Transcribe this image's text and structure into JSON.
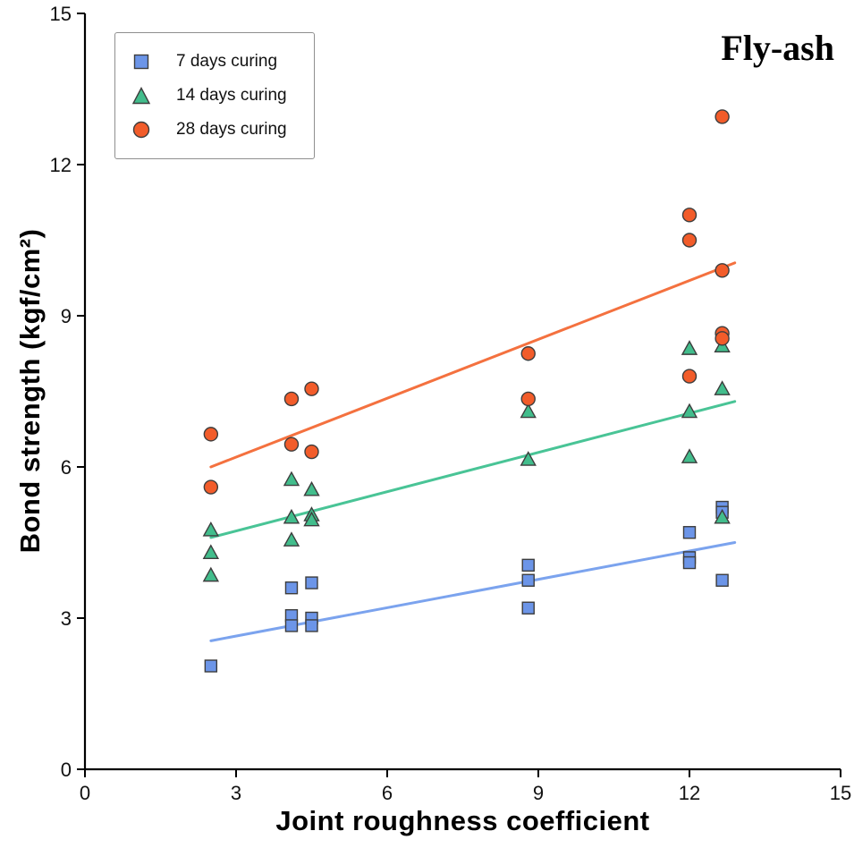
{
  "chart_data": {
    "type": "scatter",
    "annotation": "Fly-ash",
    "xlabel": "Joint roughness coefficient",
    "ylabel": "Bond strength (kgf/cm²)",
    "xlim": [
      0,
      15
    ],
    "ylim": [
      0,
      15
    ],
    "xticks": [
      0,
      3,
      6,
      9,
      12,
      15
    ],
    "yticks": [
      0,
      3,
      6,
      9,
      12,
      15
    ],
    "grid": false,
    "legend_position": "top-left",
    "axis_color": "#000000",
    "marker_outline": "#3d3d3d",
    "series": [
      {
        "id": "7-days",
        "name": "7 days curing",
        "marker": "square",
        "color": "#6c95e8",
        "line_color": "#7ba3ee",
        "points": [
          [
            2.5,
            2.05
          ],
          [
            4.1,
            3.6
          ],
          [
            4.1,
            3.05
          ],
          [
            4.1,
            2.85
          ],
          [
            4.5,
            3.7
          ],
          [
            4.5,
            3.0
          ],
          [
            4.5,
            2.85
          ],
          [
            8.8,
            4.05
          ],
          [
            8.8,
            3.75
          ],
          [
            8.8,
            3.2
          ],
          [
            12.0,
            4.7
          ],
          [
            12.0,
            4.2
          ],
          [
            12.0,
            4.1
          ],
          [
            12.65,
            5.2
          ],
          [
            12.65,
            5.1
          ],
          [
            12.65,
            3.75
          ]
        ],
        "trend": [
          [
            2.5,
            2.55
          ],
          [
            12.9,
            4.5
          ]
        ]
      },
      {
        "id": "14-days",
        "name": "14 days curing",
        "marker": "triangle",
        "color": "#42bd8c",
        "line_color": "#49c496",
        "points": [
          [
            2.5,
            4.75
          ],
          [
            2.5,
            4.3
          ],
          [
            2.5,
            3.85
          ],
          [
            4.1,
            5.75
          ],
          [
            4.1,
            5.0
          ],
          [
            4.1,
            4.55
          ],
          [
            4.5,
            5.55
          ],
          [
            4.5,
            5.05
          ],
          [
            4.5,
            4.95
          ],
          [
            8.8,
            7.1
          ],
          [
            8.8,
            6.15
          ],
          [
            12.0,
            8.35
          ],
          [
            12.0,
            7.1
          ],
          [
            12.0,
            6.2
          ],
          [
            12.65,
            8.4
          ],
          [
            12.65,
            7.55
          ],
          [
            12.65,
            5.0
          ]
        ],
        "trend": [
          [
            2.5,
            4.6
          ],
          [
            12.9,
            7.3
          ]
        ]
      },
      {
        "id": "28-days",
        "name": "28 days curing",
        "marker": "circle",
        "color": "#f25c2a",
        "line_color": "#f4713f",
        "points": [
          [
            2.5,
            6.65
          ],
          [
            2.5,
            5.6
          ],
          [
            4.1,
            7.35
          ],
          [
            4.1,
            6.45
          ],
          [
            4.5,
            7.55
          ],
          [
            4.5,
            6.3
          ],
          [
            8.8,
            8.25
          ],
          [
            8.8,
            7.35
          ],
          [
            12.0,
            11.0
          ],
          [
            12.0,
            10.5
          ],
          [
            12.0,
            7.8
          ],
          [
            12.65,
            12.95
          ],
          [
            12.65,
            9.9
          ],
          [
            12.65,
            8.65
          ],
          [
            12.65,
            8.55
          ]
        ],
        "trend": [
          [
            2.5,
            6.0
          ],
          [
            12.9,
            10.05
          ]
        ]
      }
    ]
  }
}
